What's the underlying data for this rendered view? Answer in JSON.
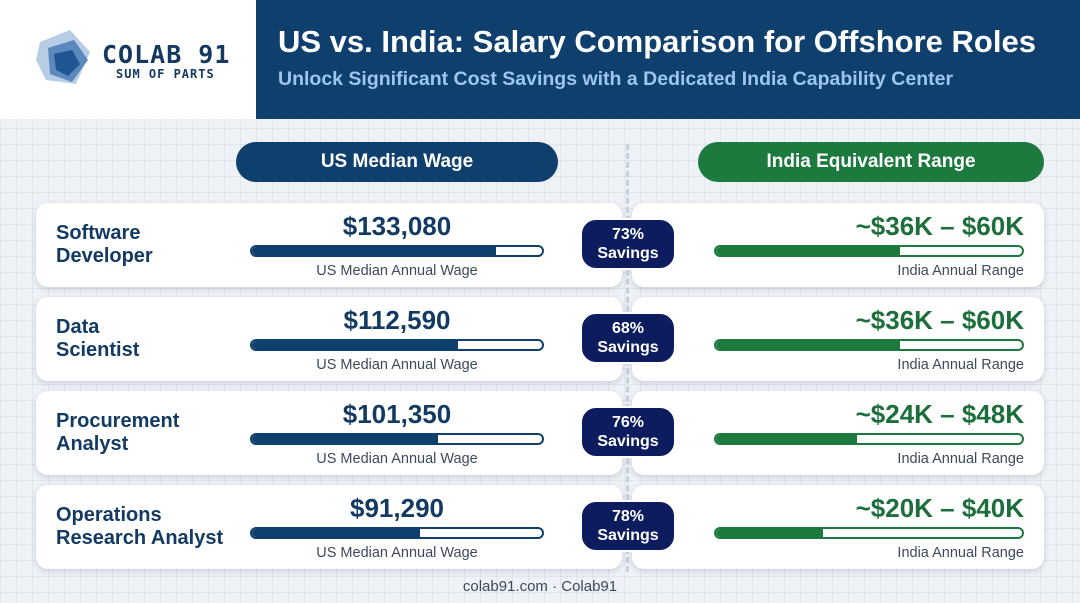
{
  "brand": {
    "name": "COLAB 91",
    "tagline": "SUM OF PARTS"
  },
  "title": "US vs. India: Salary Comparison for Offshore Roles",
  "subtitle": "Unlock Significant Cost Savings with a Dedicated India Capability Center",
  "columns": {
    "us": "US Median Wage",
    "india": "India Equivalent Range"
  },
  "colors": {
    "navy": "#0f3f6d",
    "green": "#1c7a3e",
    "badge": "#0c1c5e",
    "subtitle": "#9cc6ee"
  },
  "chart_data": {
    "type": "table",
    "title": "US vs. India: Salary Comparison for Offshore Roles",
    "rows": [
      {
        "role_lines": [
          "Software",
          "Developer"
        ],
        "us_wage": "$133,080",
        "us_caption": "US Median Annual Wage",
        "us_bar_fraction": 0.84,
        "savings_pct": "73%",
        "savings_label": "Savings",
        "india_range": "~$36K – $60K",
        "india_caption": "India Annual Range",
        "india_bar_fraction": 0.6
      },
      {
        "role_lines": [
          "Data",
          "Scientist"
        ],
        "us_wage": "$112,590",
        "us_caption": "US Median Annual Wage",
        "us_bar_fraction": 0.71,
        "savings_pct": "68%",
        "savings_label": "Savings",
        "india_range": "~$36K – $60K",
        "india_caption": "India Annual Range",
        "india_bar_fraction": 0.6
      },
      {
        "role_lines": [
          "Procurement",
          "Analyst"
        ],
        "us_wage": "$101,350",
        "us_caption": "US Median Annual Wage",
        "us_bar_fraction": 0.64,
        "savings_pct": "76%",
        "savings_label": "Savings",
        "india_range": "~$24K – $48K",
        "india_caption": "India Annual Range",
        "india_bar_fraction": 0.46
      },
      {
        "role_lines": [
          "Operations",
          "Research Analyst"
        ],
        "us_wage": "$91,290",
        "us_caption": "US Median Annual Wage",
        "us_bar_fraction": 0.58,
        "savings_pct": "78%",
        "savings_label": "Savings",
        "india_range": "~$20K – $40K",
        "india_caption": "India Annual Range",
        "india_bar_fraction": 0.35
      }
    ]
  },
  "footer": "colab91.com · Colab91"
}
